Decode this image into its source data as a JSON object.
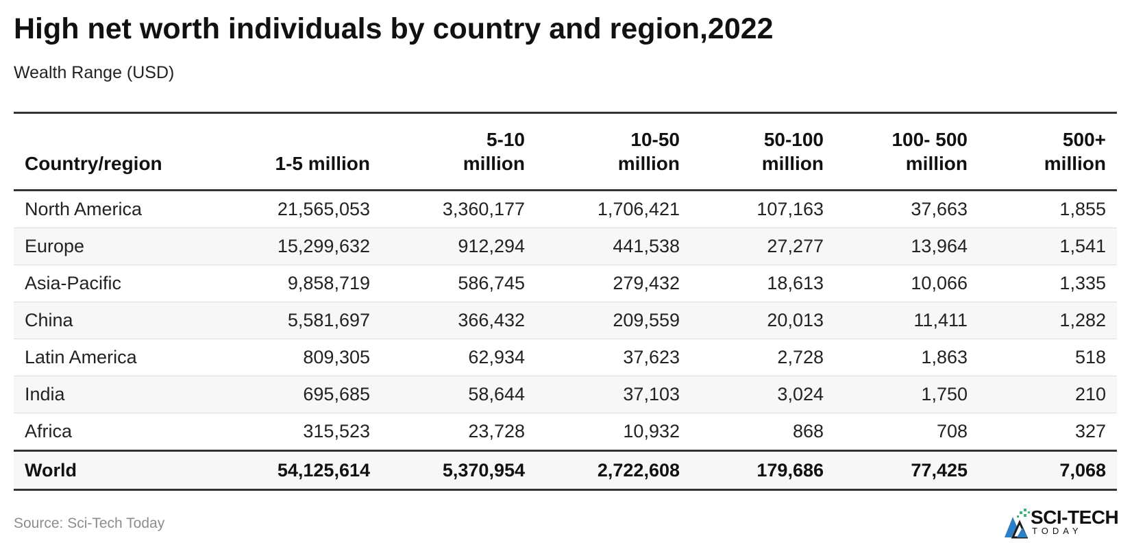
{
  "title": "High net worth individuals by country and region,2022",
  "subtitle": "Wealth Range (USD)",
  "source": "Source: Sci-Tech Today",
  "logo": {
    "main": "SCI-TECH",
    "sub": "TODAY",
    "icon": "sci-tech-logo-icon",
    "colors": [
      "#2a7fc9",
      "#3cb371",
      "#1a1a1a"
    ]
  },
  "chart_data": {
    "type": "table",
    "columns": [
      {
        "line1": "",
        "line2": "Country/region"
      },
      {
        "line1": "",
        "line2": "1-5 million"
      },
      {
        "line1": "5-10",
        "line2": "million"
      },
      {
        "line1": "10-50",
        "line2": "million"
      },
      {
        "line1": "50-100",
        "line2": "million"
      },
      {
        "line1": "100- 500",
        "line2": "million"
      },
      {
        "line1": "500+",
        "line2": "million"
      }
    ],
    "rows": [
      [
        "North America",
        "21,565,053",
        "3,360,177",
        "1,706,421",
        "107,163",
        "37,663",
        "1,855"
      ],
      [
        "Europe",
        "15,299,632",
        "912,294",
        "441,538",
        "27,277",
        "13,964",
        "1,541"
      ],
      [
        "Asia-Pacific",
        "9,858,719",
        "586,745",
        "279,432",
        "18,613",
        "10,066",
        "1,335"
      ],
      [
        "China",
        "5,581,697",
        "366,432",
        "209,559",
        "20,013",
        "11,411",
        "1,282"
      ],
      [
        "Latin America",
        "809,305",
        "62,934",
        "37,623",
        "2,728",
        "1,863",
        "518"
      ],
      [
        "India",
        "695,685",
        "58,644",
        "37,103",
        "3,024",
        "1,750",
        "210"
      ],
      [
        "Africa",
        "315,523",
        "23,728",
        "10,932",
        "868",
        "708",
        "327"
      ]
    ],
    "total": [
      "World",
      "54,125,614",
      "5,370,954",
      "2,722,608",
      "179,686",
      "77,425",
      "7,068"
    ]
  }
}
